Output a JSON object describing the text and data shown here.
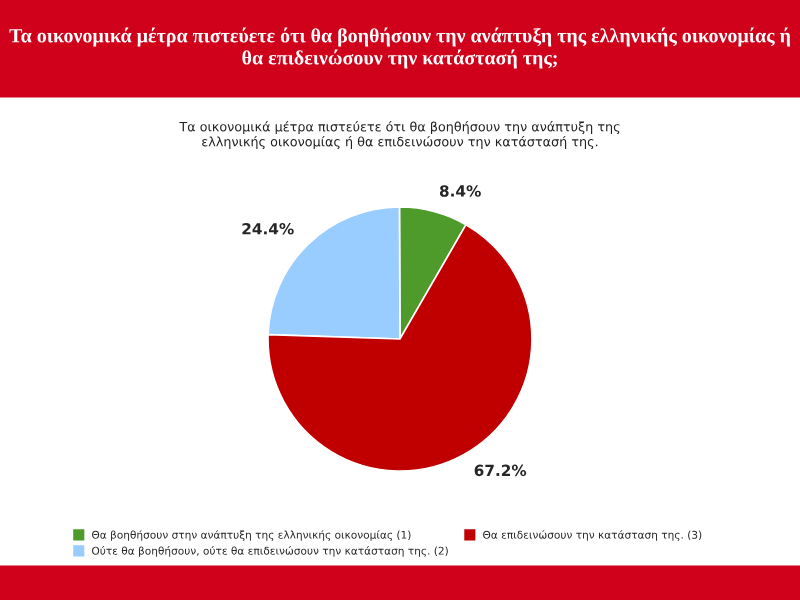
{
  "chart_data": {
    "type": "pie",
    "title": "Τα οικονομικά μέτρα πιστεύετε ότι θα βοηθήσουν την ανάπτυξη της ελληνικής οικονομίας ή θα επιδεινώσουν την κατάστασή της;",
    "subtitle": "Τα οικονομικά μέτρα πιστεύετε ότι θα βοηθήσουν την ανάπτυξη της\nελληνικής οικονομίας ή θα επιδεινώσουν την κατάστασή της.",
    "categories": [
      "Θα βοηθήσουν στην ανάπτυξη της ελληνικής οικονομίας (1)",
      "Ούτε θα βοηθήσουν, ούτε θα επιδεινώσουν την κατάσταση της. (2)",
      "Θα επιδεινώσουν την κατάσταση της. (3)"
    ],
    "values": [
      8.4,
      24.4,
      67.2
    ],
    "value_labels": [
      "8.4%",
      "24.4%",
      "67.2%"
    ],
    "colors": [
      "#4e9a2a",
      "#99ccff",
      "#c00000"
    ],
    "legend": "bottom"
  }
}
